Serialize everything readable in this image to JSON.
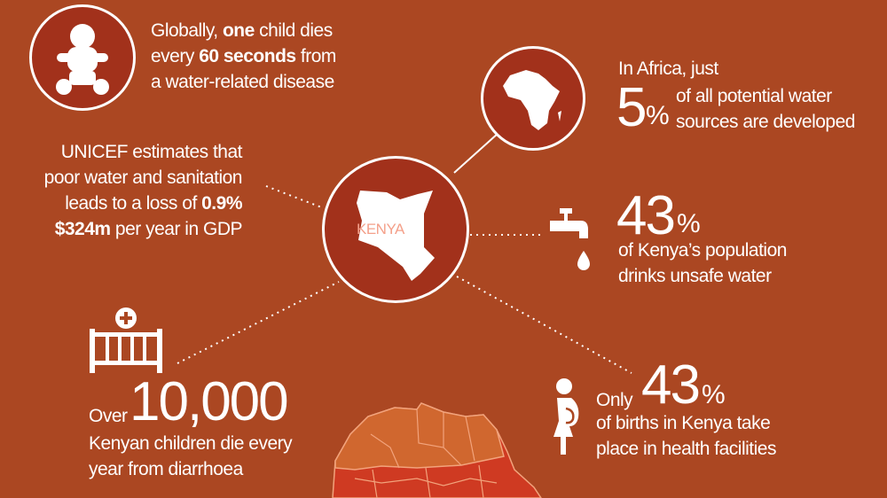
{
  "baby": {
    "pre": "Globally, ",
    "b1": "one",
    "mid": " child dies",
    "line2a": "every ",
    "b2": "60 seconds",
    "line2b": " from",
    "line3": "a water-related disease"
  },
  "unicef": {
    "l1": "UNICEF estimates that",
    "l2": "poor water and sanitation",
    "l3a": "leads to a loss  of ",
    "l3b": "0.9%",
    "l4a": "$324m",
    "l4b": " per year in GDP"
  },
  "kenya": {
    "label": "KENYA",
    "label_color": "#f4a08a"
  },
  "africa": {
    "l1": "In Africa, just",
    "num": "5",
    "pct": "%",
    "l2": "of all potential water",
    "l3": "sources are developed"
  },
  "water": {
    "num": "43",
    "pct": "%",
    "l1": "of Kenya’s population",
    "l2": "drinks unsafe water"
  },
  "children": {
    "pre": "Over",
    "num": "10,000",
    "l1": "Kenyan children die every",
    "l2": "year from diarrhoea"
  },
  "births": {
    "pre": "Only",
    "num": "43",
    "pct": "%",
    "l1": "of births in Kenya take",
    "l2": "place in health facilities"
  },
  "colors": {
    "background": "#ab4722",
    "circle": "#a2311b",
    "map_north": "#d0672f",
    "map_south": "#cf3a22"
  }
}
